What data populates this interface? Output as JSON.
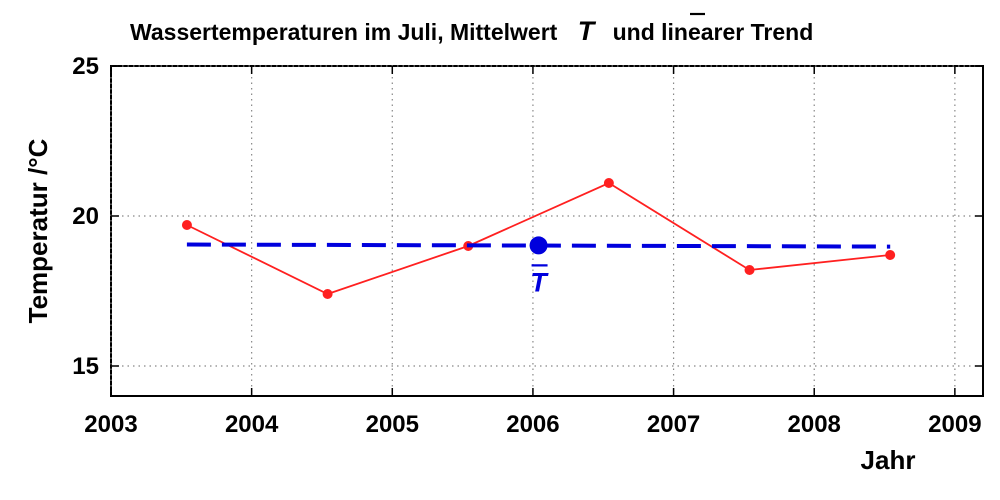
{
  "chart_data": {
    "type": "line",
    "title_prefix": "Wassertemperaturen im Juli, Mittelwert",
    "title_symbol": "T",
    "title_suffix": "und linearer Trend",
    "xlabel": "Jahr",
    "ylabel": "Temperatur /°C",
    "xlim": [
      2003,
      2009.2
    ],
    "ylim": [
      14,
      25
    ],
    "xticks": [
      2003,
      2004,
      2005,
      2006,
      2007,
      2008,
      2009
    ],
    "yticks": [
      15,
      20,
      25
    ],
    "grid": true,
    "series": [
      {
        "kind": "measurements",
        "color": "#ff2020",
        "x": [
          2003.54,
          2004.54,
          2005.54,
          2006.54,
          2007.54,
          2008.54
        ],
        "y": [
          19.7,
          17.4,
          19.0,
          21.1,
          18.2,
          18.7
        ]
      },
      {
        "kind": "linear-trend",
        "color": "#0000dd",
        "style": "dashed",
        "x": [
          2003.54,
          2008.54
        ],
        "y": [
          19.05,
          18.98
        ]
      }
    ],
    "mean_point": {
      "x": 2006.04,
      "y": 19.02,
      "label": "T",
      "color": "#0000dd"
    }
  }
}
